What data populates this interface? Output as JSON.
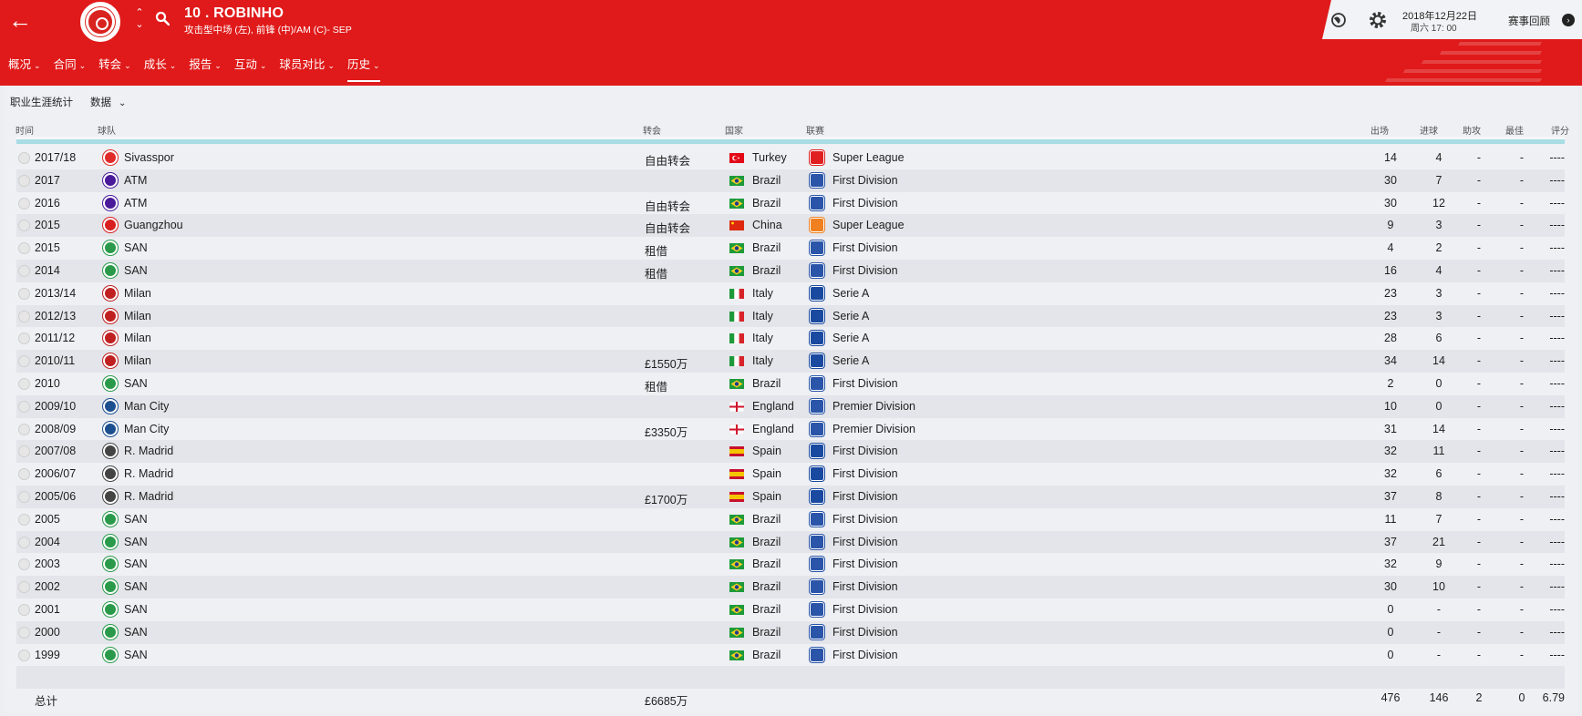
{
  "header": {
    "player_name": "10 . ROBINHO",
    "player_position": "攻击型中场 (左), 前锋 (中)/AM (C)- SEP",
    "date": "2018年12月22日",
    "time": "周六 17: 00",
    "match_review_label": "赛事回顾",
    "club_color": "#e01a1a"
  },
  "nav": {
    "items": [
      {
        "label": "概况"
      },
      {
        "label": "合同"
      },
      {
        "label": "转会"
      },
      {
        "label": "成长"
      },
      {
        "label": "报告"
      },
      {
        "label": "互动"
      },
      {
        "label": "球员对比"
      },
      {
        "label": "历史"
      }
    ],
    "active": "历史"
  },
  "subbar": {
    "title": "职业生涯统计",
    "dropdown_label": "数据"
  },
  "columns": {
    "time": "时间",
    "club": "球队",
    "fee": "转会",
    "country": "国家",
    "league": "联赛",
    "apps": "出场",
    "goals": "进球",
    "assists": "助攻",
    "pom": "最佳",
    "rating": "评分"
  },
  "rows": [
    {
      "time": "2017/18",
      "club": "Sivasspor",
      "club_color": "#e12b2b",
      "fee": "自由转会",
      "country": "Turkey",
      "flag": "turkey",
      "league": "Super League",
      "league_color": "#e02020",
      "apps": "14",
      "goals": "4",
      "assists": "-",
      "pom": "-",
      "rating": "----"
    },
    {
      "time": "2017",
      "club": "ATM",
      "club_color": "#4a1a9a",
      "fee": "",
      "country": "Brazil",
      "flag": "brazil",
      "league": "First Division",
      "league_color": "#2a55a8",
      "apps": "30",
      "goals": "7",
      "assists": "-",
      "pom": "-",
      "rating": "----"
    },
    {
      "time": "2016",
      "club": "ATM",
      "club_color": "#4a1a9a",
      "fee": "自由转会",
      "country": "Brazil",
      "flag": "brazil",
      "league": "First Division",
      "league_color": "#2a55a8",
      "apps": "30",
      "goals": "12",
      "assists": "-",
      "pom": "-",
      "rating": "----"
    },
    {
      "time": "2015",
      "club": "Guangzhou",
      "club_color": "#d82020",
      "fee": "自由转会",
      "country": "China",
      "flag": "china",
      "league": "Super League",
      "league_color": "#f08020",
      "apps": "9",
      "goals": "3",
      "assists": "-",
      "pom": "-",
      "rating": "----"
    },
    {
      "time": "2015",
      "club": "SAN",
      "club_color": "#2a9a4a",
      "fee": "租借",
      "country": "Brazil",
      "flag": "brazil",
      "league": "First Division",
      "league_color": "#2a55a8",
      "apps": "4",
      "goals": "2",
      "assists": "-",
      "pom": "-",
      "rating": "----"
    },
    {
      "time": "2014",
      "club": "SAN",
      "club_color": "#2a9a4a",
      "fee": "租借",
      "country": "Brazil",
      "flag": "brazil",
      "league": "First Division",
      "league_color": "#2a55a8",
      "apps": "16",
      "goals": "4",
      "assists": "-",
      "pom": "-",
      "rating": "----"
    },
    {
      "time": "2013/14",
      "club": "Milan",
      "club_color": "#c02020",
      "fee": "",
      "country": "Italy",
      "flag": "italy",
      "league": "Serie A",
      "league_color": "#1a4aa0",
      "apps": "23",
      "goals": "3",
      "assists": "-",
      "pom": "-",
      "rating": "----"
    },
    {
      "time": "2012/13",
      "club": "Milan",
      "club_color": "#c02020",
      "fee": "",
      "country": "Italy",
      "flag": "italy",
      "league": "Serie A",
      "league_color": "#1a4aa0",
      "apps": "23",
      "goals": "3",
      "assists": "-",
      "pom": "-",
      "rating": "----"
    },
    {
      "time": "2011/12",
      "club": "Milan",
      "club_color": "#c02020",
      "fee": "",
      "country": "Italy",
      "flag": "italy",
      "league": "Serie A",
      "league_color": "#1a4aa0",
      "apps": "28",
      "goals": "6",
      "assists": "-",
      "pom": "-",
      "rating": "----"
    },
    {
      "time": "2010/11",
      "club": "Milan",
      "club_color": "#c02020",
      "fee": "£1550万",
      "country": "Italy",
      "flag": "italy",
      "league": "Serie A",
      "league_color": "#1a4aa0",
      "apps": "34",
      "goals": "14",
      "assists": "-",
      "pom": "-",
      "rating": "----"
    },
    {
      "time": "2010",
      "club": "SAN",
      "club_color": "#2a9a4a",
      "fee": "租借",
      "country": "Brazil",
      "flag": "brazil",
      "league": "First Division",
      "league_color": "#2a55a8",
      "apps": "2",
      "goals": "0",
      "assists": "-",
      "pom": "-",
      "rating": "----"
    },
    {
      "time": "2009/10",
      "club": "Man City",
      "club_color": "#1c4f8f",
      "fee": "",
      "country": "England",
      "flag": "england",
      "league": "Premier Division",
      "league_color": "#2a55a8",
      "apps": "10",
      "goals": "0",
      "assists": "-",
      "pom": "-",
      "rating": "----"
    },
    {
      "time": "2008/09",
      "club": "Man City",
      "club_color": "#1c4f8f",
      "fee": "£3350万",
      "country": "England",
      "flag": "england",
      "league": "Premier Division",
      "league_color": "#2a55a8",
      "apps": "31",
      "goals": "14",
      "assists": "-",
      "pom": "-",
      "rating": "----"
    },
    {
      "time": "2007/08",
      "club": "R. Madrid",
      "club_color": "#444444",
      "fee": "",
      "country": "Spain",
      "flag": "spain",
      "league": "First Division",
      "league_color": "#1a4aa0",
      "apps": "32",
      "goals": "11",
      "assists": "-",
      "pom": "-",
      "rating": "----"
    },
    {
      "time": "2006/07",
      "club": "R. Madrid",
      "club_color": "#444444",
      "fee": "",
      "country": "Spain",
      "flag": "spain",
      "league": "First Division",
      "league_color": "#1a4aa0",
      "apps": "32",
      "goals": "6",
      "assists": "-",
      "pom": "-",
      "rating": "----"
    },
    {
      "time": "2005/06",
      "club": "R. Madrid",
      "club_color": "#444444",
      "fee": "£1700万",
      "country": "Spain",
      "flag": "spain",
      "league": "First Division",
      "league_color": "#1a4aa0",
      "apps": "37",
      "goals": "8",
      "assists": "-",
      "pom": "-",
      "rating": "----"
    },
    {
      "time": "2005",
      "club": "SAN",
      "club_color": "#2a9a4a",
      "fee": "",
      "country": "Brazil",
      "flag": "brazil",
      "league": "First Division",
      "league_color": "#2a55a8",
      "apps": "11",
      "goals": "7",
      "assists": "-",
      "pom": "-",
      "rating": "----"
    },
    {
      "time": "2004",
      "club": "SAN",
      "club_color": "#2a9a4a",
      "fee": "",
      "country": "Brazil",
      "flag": "brazil",
      "league": "First Division",
      "league_color": "#2a55a8",
      "apps": "37",
      "goals": "21",
      "assists": "-",
      "pom": "-",
      "rating": "----"
    },
    {
      "time": "2003",
      "club": "SAN",
      "club_color": "#2a9a4a",
      "fee": "",
      "country": "Brazil",
      "flag": "brazil",
      "league": "First Division",
      "league_color": "#2a55a8",
      "apps": "32",
      "goals": "9",
      "assists": "-",
      "pom": "-",
      "rating": "----"
    },
    {
      "time": "2002",
      "club": "SAN",
      "club_color": "#2a9a4a",
      "fee": "",
      "country": "Brazil",
      "flag": "brazil",
      "league": "First Division",
      "league_color": "#2a55a8",
      "apps": "30",
      "goals": "10",
      "assists": "-",
      "pom": "-",
      "rating": "----"
    },
    {
      "time": "2001",
      "club": "SAN",
      "club_color": "#2a9a4a",
      "fee": "",
      "country": "Brazil",
      "flag": "brazil",
      "league": "First Division",
      "league_color": "#2a55a8",
      "apps": "0",
      "goals": "-",
      "assists": "-",
      "pom": "-",
      "rating": "----"
    },
    {
      "time": "2000",
      "club": "SAN",
      "club_color": "#2a9a4a",
      "fee": "",
      "country": "Brazil",
      "flag": "brazil",
      "league": "First Division",
      "league_color": "#2a55a8",
      "apps": "0",
      "goals": "-",
      "assists": "-",
      "pom": "-",
      "rating": "----"
    },
    {
      "time": "1999",
      "club": "SAN",
      "club_color": "#2a9a4a",
      "fee": "",
      "country": "Brazil",
      "flag": "brazil",
      "league": "First Division",
      "league_color": "#2a55a8",
      "apps": "0",
      "goals": "-",
      "assists": "-",
      "pom": "-",
      "rating": "----"
    }
  ],
  "total": {
    "label": "总计",
    "fee": "£6685万",
    "apps": "476",
    "goals": "146",
    "assists": "2",
    "pom": "0",
    "rating": "6.79"
  }
}
